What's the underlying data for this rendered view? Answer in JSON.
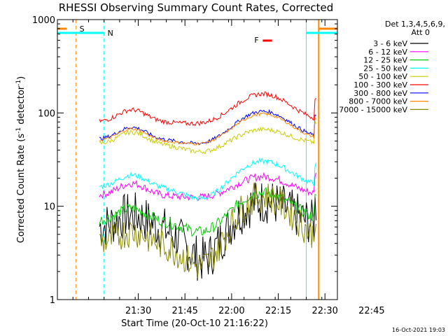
{
  "chart_data": {
    "type": "line",
    "title": "RHESSI Observing Summary Count Rates, Corrected",
    "xlabel": "Start Time (20-Oct-10 21:16:22)",
    "ylabel_main": "Corrected Count Rate (s",
    "ylabel_sup1": "-1",
    "ylabel_mid": " detector",
    "ylabel_sup2": "-1",
    "ylabel_end": ")",
    "yscale": "log",
    "ylim": [
      1,
      1000
    ],
    "xlim_minutes": [
      -12,
      78
    ],
    "y_ticks": [
      {
        "value": 1,
        "label": "1"
      },
      {
        "value": 10,
        "label": "10"
      },
      {
        "value": 100,
        "label": "100"
      },
      {
        "value": 1000,
        "label": "1000"
      }
    ],
    "x_ticks": [
      {
        "value": 14,
        "label": "21:30"
      },
      {
        "value": 29,
        "label": "21:45"
      },
      {
        "value": 44,
        "label": "22:00"
      },
      {
        "value": 59,
        "label": "22:15"
      },
      {
        "value": 74,
        "label": "22:30"
      },
      {
        "value": 89,
        "label": "22:45"
      }
    ],
    "legend_header": [
      "Det 1,3,4,5,6,9,",
      "Att 0"
    ],
    "series": [
      {
        "name": "3 - 6 keV",
        "color": "#000000",
        "level": 6,
        "hump": 1.9,
        "dip": 0.05,
        "noise": 0.5
      },
      {
        "name": "6 - 12 keV",
        "color": "#ff00ff",
        "level": 13,
        "hump": 1.6,
        "dip": 0.9,
        "noise": 0.08
      },
      {
        "name": "12 - 25 keV",
        "color": "#00cc00",
        "level": 7,
        "hump": 2.0,
        "dip": 0.55,
        "noise": 0.12
      },
      {
        "name": "25 - 50 keV",
        "color": "#00ffff",
        "level": 16,
        "hump": 1.9,
        "dip": 0.55,
        "noise": 0.06
      },
      {
        "name": "50 - 100 keV",
        "color": "#cccc00",
        "level": 46,
        "hump": 1.45,
        "dip": 0.7,
        "noise": 0.05
      },
      {
        "name": "100 - 300 keV",
        "color": "#ff0000",
        "level": 80,
        "hump": 2.0,
        "dip": 0.9,
        "noise": 0.05
      },
      {
        "name": "300 - 800 keV",
        "color": "#0000ff",
        "level": 52,
        "hump": 2.0,
        "dip": 0.8,
        "noise": 0.04
      },
      {
        "name": "800 - 7000 keV",
        "color": "#ff8800",
        "level": 50,
        "hump": 1.95,
        "dip": 0.85,
        "noise": 0.03
      },
      {
        "name": "7000 - 15000 keV",
        "color": "#888800",
        "level": 4,
        "hump": 3.2,
        "dip": 0.2,
        "noise": 0.35
      }
    ],
    "annotations": {
      "saa_label": "S",
      "night_label": "N",
      "flare_label": "F"
    },
    "colors": {
      "saa": "#ff8800",
      "night": "#00ffff",
      "flare": "#ff0000"
    }
  },
  "footer": {
    "timestamp": "16-Oct-2021 19:03"
  }
}
